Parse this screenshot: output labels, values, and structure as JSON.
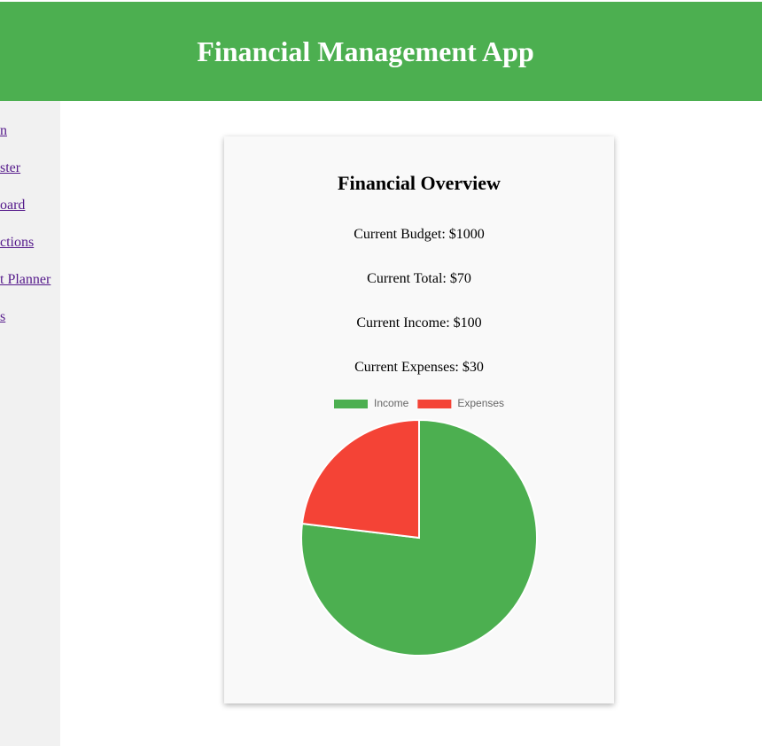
{
  "header": {
    "title": "Financial Management App"
  },
  "nav": [
    "n",
    "ster",
    "oard",
    "ctions",
    "t Planner",
    "s"
  ],
  "card": {
    "title": "Financial Overview",
    "lines": [
      "Current Budget: $1000",
      "Current Total: $70",
      "Current Income: $100",
      "Current Expenses: $30"
    ]
  },
  "chart_data": {
    "type": "pie",
    "categories": [
      "Income",
      "Expenses"
    ],
    "values": [
      100,
      30
    ],
    "colors": [
      "#4caf50",
      "#f44336"
    ],
    "legend": "top"
  }
}
